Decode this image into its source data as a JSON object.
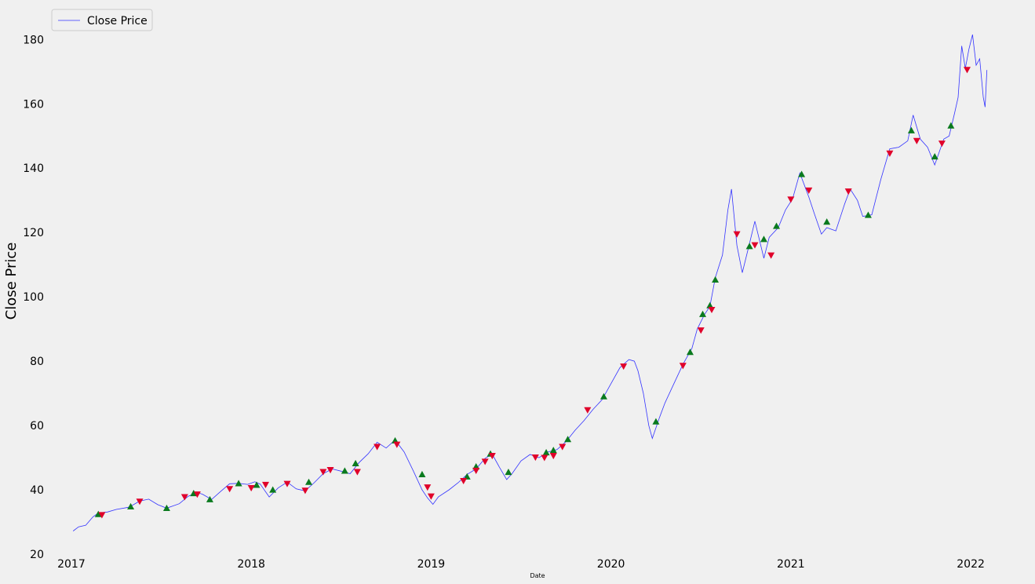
{
  "chart_data": {
    "type": "line",
    "title": "",
    "xlabel": "Date",
    "ylabel": "Close Price",
    "xlim": [
      2016.9,
      2022.1
    ],
    "ylim": [
      20,
      183
    ],
    "x_ticks": [
      2017,
      2018,
      2019,
      2020,
      2021,
      2022
    ],
    "y_ticks": [
      20,
      40,
      60,
      80,
      100,
      120,
      140,
      160,
      180
    ],
    "grid": false,
    "legend": {
      "position": "top-left",
      "entries": [
        "Close Price"
      ]
    },
    "colors": {
      "line": "#3333ff",
      "buy": "#0a7a1e",
      "sell": "#e0002a",
      "background": "#f0f0f0"
    },
    "series": [
      {
        "name": "Close Price",
        "points": [
          [
            2017.01,
            27.2
          ],
          [
            2017.04,
            28.5
          ],
          [
            2017.08,
            29.0
          ],
          [
            2017.12,
            31.6
          ],
          [
            2017.15,
            32.8
          ],
          [
            2017.2,
            33.1
          ],
          [
            2017.25,
            33.9
          ],
          [
            2017.32,
            34.6
          ],
          [
            2017.38,
            36.5
          ],
          [
            2017.43,
            37.1
          ],
          [
            2017.48,
            35.4
          ],
          [
            2017.53,
            34.3
          ],
          [
            2017.6,
            35.7
          ],
          [
            2017.65,
            38.0
          ],
          [
            2017.7,
            39.2
          ],
          [
            2017.73,
            38.6
          ],
          [
            2017.78,
            37.0
          ],
          [
            2017.83,
            39.5
          ],
          [
            2017.88,
            41.9
          ],
          [
            2017.93,
            42.0
          ],
          [
            2017.98,
            41.7
          ],
          [
            2018.02,
            42.5
          ],
          [
            2018.05,
            41.8
          ],
          [
            2018.1,
            37.8
          ],
          [
            2018.15,
            40.6
          ],
          [
            2018.2,
            42.4
          ],
          [
            2018.25,
            40.3
          ],
          [
            2018.3,
            39.7
          ],
          [
            2018.35,
            42.2
          ],
          [
            2018.4,
            45.0
          ],
          [
            2018.45,
            46.5
          ],
          [
            2018.5,
            45.8
          ],
          [
            2018.55,
            45.0
          ],
          [
            2018.6,
            48.5
          ],
          [
            2018.65,
            51.2
          ],
          [
            2018.7,
            54.8
          ],
          [
            2018.75,
            53.0
          ],
          [
            2018.8,
            55.5
          ],
          [
            2018.85,
            51.8
          ],
          [
            2018.9,
            46.0
          ],
          [
            2018.95,
            40.0
          ],
          [
            2018.98,
            37.5
          ],
          [
            2019.01,
            35.5
          ],
          [
            2019.04,
            37.8
          ],
          [
            2019.1,
            40.0
          ],
          [
            2019.15,
            42.2
          ],
          [
            2019.2,
            44.8
          ],
          [
            2019.25,
            46.5
          ],
          [
            2019.3,
            49.8
          ],
          [
            2019.34,
            51.1
          ],
          [
            2019.38,
            47.0
          ],
          [
            2019.42,
            43.2
          ],
          [
            2019.45,
            45.0
          ],
          [
            2019.5,
            49.0
          ],
          [
            2019.55,
            51.0
          ],
          [
            2019.6,
            50.0
          ],
          [
            2019.65,
            51.8
          ],
          [
            2019.7,
            52.5
          ],
          [
            2019.75,
            55.0
          ],
          [
            2019.8,
            58.5
          ],
          [
            2019.85,
            61.5
          ],
          [
            2019.9,
            65.0
          ],
          [
            2019.95,
            68.0
          ],
          [
            2020.0,
            73.0
          ],
          [
            2020.05,
            78.0
          ],
          [
            2020.1,
            80.5
          ],
          [
            2020.13,
            80.0
          ],
          [
            2020.15,
            77.0
          ],
          [
            2020.18,
            70.0
          ],
          [
            2020.21,
            60.0
          ],
          [
            2020.23,
            56.0
          ],
          [
            2020.27,
            62.5
          ],
          [
            2020.3,
            67.0
          ],
          [
            2020.35,
            73.0
          ],
          [
            2020.4,
            79.0
          ],
          [
            2020.45,
            84.0
          ],
          [
            2020.48,
            90.0
          ],
          [
            2020.52,
            94.5
          ],
          [
            2020.55,
            97.0
          ],
          [
            2020.58,
            106.0
          ],
          [
            2020.62,
            113.0
          ],
          [
            2020.65,
            127.0
          ],
          [
            2020.67,
            133.5
          ],
          [
            2020.7,
            116.0
          ],
          [
            2020.73,
            107.5
          ],
          [
            2020.77,
            116.5
          ],
          [
            2020.8,
            123.5
          ],
          [
            2020.85,
            112.0
          ],
          [
            2020.88,
            118.5
          ],
          [
            2020.93,
            121.5
          ],
          [
            2020.97,
            127.0
          ],
          [
            2021.01,
            130.5
          ],
          [
            2021.05,
            138.5
          ],
          [
            2021.08,
            134.0
          ],
          [
            2021.1,
            131.0
          ],
          [
            2021.13,
            126.0
          ],
          [
            2021.17,
            119.5
          ],
          [
            2021.2,
            121.5
          ],
          [
            2021.25,
            120.5
          ],
          [
            2021.3,
            129.0
          ],
          [
            2021.33,
            133.5
          ],
          [
            2021.37,
            130.0
          ],
          [
            2021.4,
            125.0
          ],
          [
            2021.45,
            125.5
          ],
          [
            2021.5,
            136.5
          ],
          [
            2021.55,
            146.0
          ],
          [
            2021.6,
            146.5
          ],
          [
            2021.65,
            148.5
          ],
          [
            2021.68,
            156.5
          ],
          [
            2021.72,
            149.0
          ],
          [
            2021.76,
            146.5
          ],
          [
            2021.8,
            141.0
          ],
          [
            2021.85,
            149.0
          ],
          [
            2021.88,
            150.0
          ],
          [
            2021.91,
            157.0
          ],
          [
            2021.93,
            162.0
          ],
          [
            2021.95,
            178.0
          ],
          [
            2021.97,
            171.0
          ],
          [
            2021.99,
            177.0
          ],
          [
            2022.01,
            181.5
          ],
          [
            2022.03,
            172.0
          ],
          [
            2022.05,
            174.0
          ],
          [
            2022.07,
            162.0
          ],
          [
            2022.08,
            159.0
          ],
          [
            2022.09,
            170.5
          ]
        ]
      }
    ],
    "buy_signals": [
      [
        2017.15,
        32.4
      ],
      [
        2017.33,
        34.8
      ],
      [
        2017.53,
        34.3
      ],
      [
        2017.68,
        38.9
      ],
      [
        2017.77,
        37.0
      ],
      [
        2017.93,
        42.0
      ],
      [
        2018.03,
        41.5
      ],
      [
        2018.12,
        40.0
      ],
      [
        2018.32,
        42.4
      ],
      [
        2018.52,
        45.9
      ],
      [
        2018.58,
        48.2
      ],
      [
        2018.8,
        55.3
      ],
      [
        2018.95,
        44.8
      ],
      [
        2019.2,
        44.1
      ],
      [
        2019.25,
        47.2
      ],
      [
        2019.33,
        51.2
      ],
      [
        2019.43,
        45.5
      ],
      [
        2019.64,
        51.6
      ],
      [
        2019.68,
        52.3
      ],
      [
        2019.76,
        55.7
      ],
      [
        2019.96,
        69.0
      ],
      [
        2020.25,
        61.2
      ],
      [
        2020.44,
        82.8
      ],
      [
        2020.51,
        94.6
      ],
      [
        2020.55,
        97.3
      ],
      [
        2020.58,
        105.3
      ],
      [
        2020.77,
        115.7
      ],
      [
        2020.85,
        117.9
      ],
      [
        2020.92,
        122.0
      ],
      [
        2021.06,
        138.1
      ],
      [
        2021.2,
        123.3
      ],
      [
        2021.43,
        125.4
      ],
      [
        2021.67,
        151.7
      ],
      [
        2021.8,
        143.6
      ],
      [
        2021.89,
        153.2
      ]
    ],
    "sell_signals": [
      [
        2017.17,
        32.2
      ],
      [
        2017.38,
        36.4
      ],
      [
        2017.63,
        37.8
      ],
      [
        2017.7,
        38.6
      ],
      [
        2017.88,
        40.3
      ],
      [
        2018.0,
        40.6
      ],
      [
        2018.08,
        41.6
      ],
      [
        2018.2,
        41.9
      ],
      [
        2018.3,
        39.8
      ],
      [
        2018.4,
        45.6
      ],
      [
        2018.44,
        46.2
      ],
      [
        2018.59,
        45.6
      ],
      [
        2018.7,
        53.4
      ],
      [
        2018.81,
        54.1
      ],
      [
        2018.98,
        40.8
      ],
      [
        2019.0,
        38.0
      ],
      [
        2019.18,
        42.8
      ],
      [
        2019.25,
        46.0
      ],
      [
        2019.3,
        48.8
      ],
      [
        2019.34,
        50.6
      ],
      [
        2019.58,
        50.1
      ],
      [
        2019.63,
        50.0
      ],
      [
        2019.68,
        50.6
      ],
      [
        2019.73,
        53.4
      ],
      [
        2019.87,
        64.8
      ],
      [
        2020.07,
        78.4
      ],
      [
        2020.4,
        78.6
      ],
      [
        2020.5,
        89.6
      ],
      [
        2020.56,
        96.0
      ],
      [
        2020.7,
        119.5
      ],
      [
        2020.8,
        116.1
      ],
      [
        2020.89,
        112.9
      ],
      [
        2021.0,
        130.3
      ],
      [
        2021.1,
        133.1
      ],
      [
        2021.32,
        132.8
      ],
      [
        2021.55,
        144.6
      ],
      [
        2021.7,
        148.5
      ],
      [
        2021.84,
        147.7
      ],
      [
        2021.98,
        170.6
      ]
    ]
  }
}
